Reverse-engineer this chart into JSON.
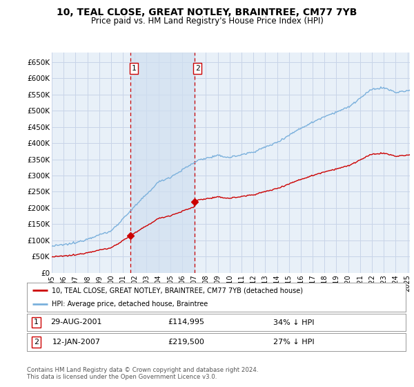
{
  "title": "10, TEAL CLOSE, GREAT NOTLEY, BRAINTREE, CM77 7YB",
  "subtitle": "Price paid vs. HM Land Registry's House Price Index (HPI)",
  "yticks": [
    0,
    50000,
    100000,
    150000,
    200000,
    250000,
    300000,
    350000,
    400000,
    450000,
    500000,
    550000,
    600000,
    650000
  ],
  "xlim_start": 1995.0,
  "xlim_end": 2025.2,
  "ylim": [
    0,
    680000
  ],
  "hpi_color": "#7ab0dc",
  "sale_color": "#cc0000",
  "grid_color": "#c8d4e8",
  "bg_color": "#ffffff",
  "plot_bg_color": "#e8f0f8",
  "annotation_bg": "#d0dff0",
  "legend_label_sale": "10, TEAL CLOSE, GREAT NOTLEY, BRAINTREE, CM77 7YB (detached house)",
  "legend_label_hpi": "HPI: Average price, detached house, Braintree",
  "sale1_date": "29-AUG-2001",
  "sale1_price": "£114,995",
  "sale1_pct": "34% ↓ HPI",
  "sale1_x": 2001.66,
  "sale1_y": 114995,
  "sale2_date": "12-JAN-2007",
  "sale2_price": "£219,500",
  "sale2_pct": "27% ↓ HPI",
  "sale2_x": 2007.04,
  "sale2_y": 219500,
  "footnote": "Contains HM Land Registry data © Crown copyright and database right 2024.\nThis data is licensed under the Open Government Licence v3.0."
}
